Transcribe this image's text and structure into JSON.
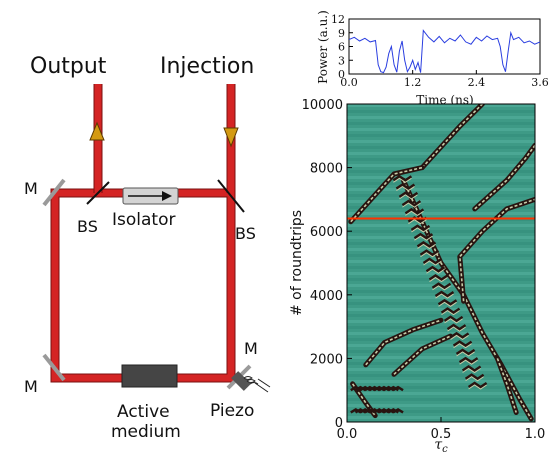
{
  "diagram": {
    "labels": {
      "output": "Output",
      "injection": "Injection",
      "bs_left": "BS",
      "bs_right": "BS",
      "isolator": "Isolator",
      "m_top_left": "M",
      "m_bottom_left": "M",
      "m_right": "M",
      "active_line1": "Active",
      "active_line2": "medium",
      "piezo": "Piezo"
    },
    "colors": {
      "beam": "#d42424",
      "beam_edge": "#7a1010",
      "mirror": "#9a9a9a",
      "arrow": "#d49a12",
      "medium": "#454545",
      "isolator": "#d4d4d4"
    }
  },
  "chart_data": [
    {
      "type": "line",
      "xlabel": "Time (ns)",
      "ylabel": "Power (a.u.)",
      "xlim": [
        0,
        3.6
      ],
      "ylim": [
        0,
        12
      ],
      "x_ticks": [
        "0.0",
        "1.2",
        "2.4",
        "3.6"
      ],
      "y_ticks": [
        "0",
        "3",
        "6",
        "9",
        "12"
      ],
      "series_color": "#2a3ee0",
      "series": [
        {
          "x": [
            0.0,
            0.1,
            0.2,
            0.3,
            0.4,
            0.5,
            0.55,
            0.6,
            0.65,
            0.7,
            0.75,
            0.8,
            0.85,
            0.9,
            0.95,
            1.0,
            1.05,
            1.1,
            1.15,
            1.2,
            1.25,
            1.3,
            1.35,
            1.4,
            1.5,
            1.6,
            1.7,
            1.8,
            1.9,
            2.0,
            2.1,
            2.2,
            2.3,
            2.4,
            2.5,
            2.6,
            2.7,
            2.8,
            2.85,
            2.9,
            2.95,
            3.0,
            3.05,
            3.1,
            3.2,
            3.3,
            3.4,
            3.5,
            3.6
          ],
          "y": [
            7.5,
            8.0,
            7.2,
            7.8,
            7.0,
            7.3,
            2.0,
            0.5,
            0.3,
            1.5,
            4.5,
            6.0,
            2.0,
            0.4,
            5.0,
            7.2,
            3.0,
            0.5,
            1.5,
            3.0,
            1.0,
            2.5,
            0.3,
            9.5,
            8.0,
            7.0,
            8.2,
            6.8,
            7.8,
            7.2,
            8.5,
            7.0,
            6.5,
            8.0,
            7.2,
            8.3,
            7.5,
            7.8,
            6.0,
            2.0,
            0.5,
            5.0,
            9.0,
            7.5,
            8.0,
            6.8,
            7.2,
            6.5,
            7.0
          ]
        }
      ]
    },
    {
      "type": "heatmap",
      "xlabel": "τc",
      "ylabel": "# of roundtrips",
      "xlim": [
        0,
        1
      ],
      "ylim": [
        0,
        10000
      ],
      "x_ticks": [
        "0.0",
        "0.5",
        "1.0"
      ],
      "y_ticks": [
        "0",
        "2000",
        "4000",
        "6000",
        "8000",
        "10000"
      ],
      "background_color": "#3e9a86",
      "marker_line": {
        "y": 6400,
        "color": "#ff3300"
      },
      "streak_colors": {
        "dark": "#281410",
        "light": "#c8cca8"
      },
      "streaks": [
        {
          "points": [
            [
              0.4,
              8000
            ],
            [
              0.6,
              9300
            ],
            [
              0.72,
              10000
            ]
          ]
        },
        {
          "points": [
            [
              0.02,
              6300
            ],
            [
              0.25,
              7800
            ],
            [
              0.4,
              8000
            ]
          ]
        },
        {
          "points": [
            [
              0.68,
              6700
            ],
            [
              0.85,
              7600
            ],
            [
              0.95,
              8300
            ],
            [
              1.0,
              8700
            ]
          ]
        },
        {
          "points": [
            [
              0.3,
              7600
            ],
            [
              0.5,
              5000
            ],
            [
              0.62,
              4000
            ],
            [
              0.72,
              2800
            ],
            [
              0.82,
              1800
            ],
            [
              0.92,
              700
            ],
            [
              0.98,
              100
            ]
          ]
        },
        {
          "points": [
            [
              0.62,
              3800
            ],
            [
              0.6,
              5200
            ],
            [
              0.72,
              6000
            ],
            [
              0.85,
              6700
            ],
            [
              1.0,
              7000
            ]
          ]
        },
        {
          "points": [
            [
              0.1,
              1800
            ],
            [
              0.2,
              2500
            ],
            [
              0.35,
              2900
            ],
            [
              0.5,
              3200
            ]
          ]
        },
        {
          "points": [
            [
              0.25,
              1500
            ],
            [
              0.4,
              2300
            ],
            [
              0.55,
              2700
            ]
          ]
        },
        {
          "points": [
            [
              0.03,
              1200
            ],
            [
              0.1,
              600
            ],
            [
              0.15,
              200
            ]
          ]
        },
        {
          "points": [
            [
              0.8,
              2000
            ],
            [
              0.85,
              1200
            ],
            [
              0.9,
              300
            ]
          ]
        }
      ]
    }
  ]
}
